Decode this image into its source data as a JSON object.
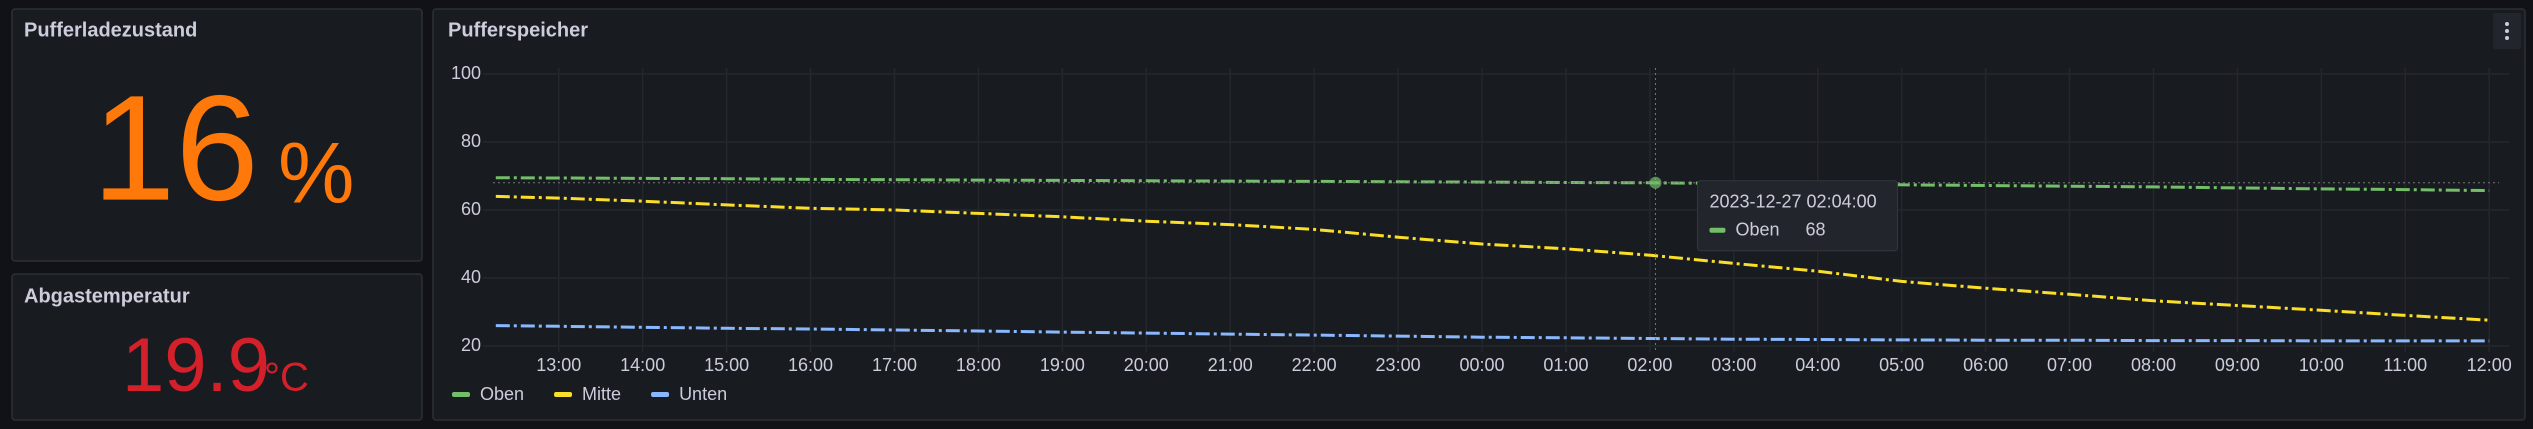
{
  "panels": [
    {
      "title": "Pufferladezustand",
      "value": 16,
      "unit": "%",
      "color": "#ff780a"
    },
    {
      "title": "Abgastemperatur",
      "value": 19.9,
      "unit": "°C",
      "color": "#d4202a"
    }
  ],
  "chart_data": {
    "type": "line",
    "title": "Pufferspeicher",
    "x": [
      "12:15",
      "13:00",
      "14:00",
      "15:00",
      "16:00",
      "17:00",
      "18:00",
      "19:00",
      "20:00",
      "21:00",
      "22:00",
      "23:00",
      "00:00",
      "01:00",
      "02:00",
      "03:00",
      "04:00",
      "05:00",
      "06:00",
      "07:00",
      "08:00",
      "09:00",
      "10:00",
      "11:00",
      "12:00"
    ],
    "series": [
      {
        "name": "Oben",
        "color": "#73bf69",
        "values": [
          69.5,
          69.4,
          69.3,
          69.2,
          69,
          68.9,
          68.8,
          68.7,
          68.6,
          68.5,
          68.4,
          68.3,
          68.2,
          68.1,
          68,
          67.8,
          67.6,
          67.4,
          67.2,
          67,
          66.8,
          66.5,
          66.2,
          66,
          65.7
        ]
      },
      {
        "name": "Mitte",
        "color": "#fade2a",
        "values": [
          64,
          63.5,
          62.6,
          61.5,
          60.5,
          60,
          59,
          58,
          56.7,
          55.7,
          54.3,
          52,
          50,
          48.6,
          46.7,
          44.3,
          42,
          39,
          37,
          35.2,
          33.3,
          31.9,
          30.5,
          29,
          27.6
        ]
      },
      {
        "name": "Unten",
        "color": "#8ab8ff",
        "values": [
          26,
          25.8,
          25.5,
          25.2,
          25,
          24.7,
          24.4,
          24.1,
          23.8,
          23.5,
          23.2,
          22.9,
          22.6,
          22.4,
          22.2,
          22,
          21.9,
          21.8,
          21.7,
          21.7,
          21.6,
          21.6,
          21.5,
          21.5,
          21.5
        ]
      }
    ],
    "xlim": [
      "12:13",
      "12:07"
    ],
    "xticks": [
      "13:00",
      "14:00",
      "15:00",
      "16:00",
      "17:00",
      "18:00",
      "19:00",
      "20:00",
      "21:00",
      "22:00",
      "23:00",
      "00:00",
      "01:00",
      "02:00",
      "03:00",
      "04:00",
      "05:00",
      "06:00",
      "07:00",
      "08:00",
      "09:00",
      "10:00",
      "11:00",
      "12:00"
    ],
    "ylim": [
      20,
      100
    ],
    "yticks": [
      20,
      40,
      60,
      80,
      100
    ],
    "grid": true,
    "tooltip": {
      "time": "2023-12-27 02:04:00",
      "series": "Oben",
      "value": 68
    }
  }
}
